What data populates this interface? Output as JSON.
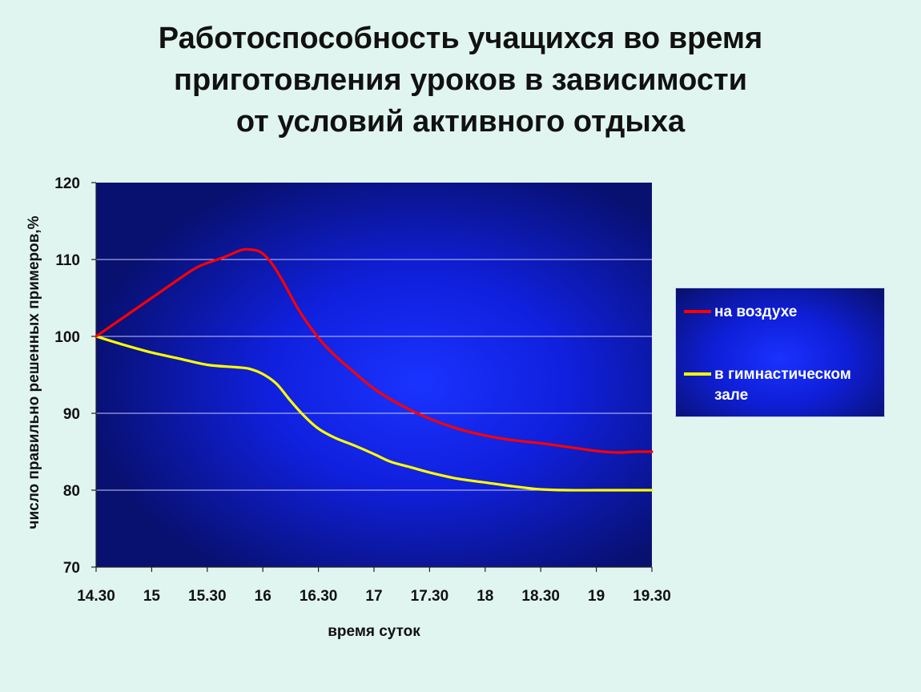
{
  "title_lines": [
    "Работоспособность учащихся во время",
    "приготовления уроков в зависимости",
    "от условий активного отдыха"
  ],
  "colors": {
    "plot_bg": "#0b1bd0",
    "series_air": "#ff0000",
    "series_gym": "#ffff00",
    "page_bg": "#e0f5ef"
  },
  "chart_data": {
    "type": "line",
    "title": "Работоспособность учащихся во время приготовления уроков в зависимости от условий активного отдыха",
    "xlabel": "время суток",
    "ylabel": "число правильно решенных примеров,%",
    "categories": [
      "14.30",
      "15",
      "15.30",
      "16",
      "16.30",
      "17",
      "17.30",
      "18",
      "18.30",
      "19",
      "19.30"
    ],
    "ylim": [
      70,
      120
    ],
    "yticks": [
      70,
      80,
      90,
      100,
      110,
      120
    ],
    "grid": true,
    "legend_position": "right",
    "series": [
      {
        "name": "на воздухе",
        "color": "#ff0000",
        "points": [
          [
            0,
            100
          ],
          [
            0.5,
            102.5
          ],
          [
            1,
            105
          ],
          [
            1.5,
            107.5
          ],
          [
            1.85,
            109.1
          ],
          [
            2.3,
            110.3
          ],
          [
            2.6,
            111.2
          ],
          [
            2.75,
            111.3
          ],
          [
            2.95,
            111
          ],
          [
            3.15,
            109.6
          ],
          [
            3.35,
            107.3
          ],
          [
            3.65,
            103.4
          ],
          [
            4,
            99.8
          ],
          [
            4.3,
            97.5
          ],
          [
            4.6,
            95.6
          ],
          [
            5,
            93.2
          ],
          [
            5.5,
            91
          ],
          [
            6,
            89.3
          ],
          [
            6.5,
            88
          ],
          [
            7,
            87.1
          ],
          [
            7.5,
            86.5
          ],
          [
            8,
            86.1
          ],
          [
            8.5,
            85.6
          ],
          [
            9,
            85.1
          ],
          [
            9.4,
            84.9
          ],
          [
            9.7,
            85
          ],
          [
            10,
            85
          ]
        ]
      },
      {
        "name": "в гимнастическом зале",
        "color": "#ffff00",
        "points": [
          [
            0,
            100
          ],
          [
            0.5,
            98.9
          ],
          [
            1,
            97.9
          ],
          [
            1.5,
            97.1
          ],
          [
            2,
            96.3
          ],
          [
            2.5,
            96
          ],
          [
            2.75,
            95.8
          ],
          [
            3,
            95.1
          ],
          [
            3.25,
            93.8
          ],
          [
            3.5,
            91.6
          ],
          [
            3.75,
            89.6
          ],
          [
            4,
            88
          ],
          [
            4.3,
            86.8
          ],
          [
            4.65,
            85.8
          ],
          [
            5,
            84.7
          ],
          [
            5.3,
            83.7
          ],
          [
            5.65,
            83
          ],
          [
            6,
            82.3
          ],
          [
            6.5,
            81.5
          ],
          [
            7,
            81
          ],
          [
            7.5,
            80.5
          ],
          [
            8,
            80.1
          ],
          [
            8.5,
            80
          ],
          [
            9,
            80
          ],
          [
            9.5,
            80
          ],
          [
            10,
            80
          ]
        ]
      }
    ]
  }
}
